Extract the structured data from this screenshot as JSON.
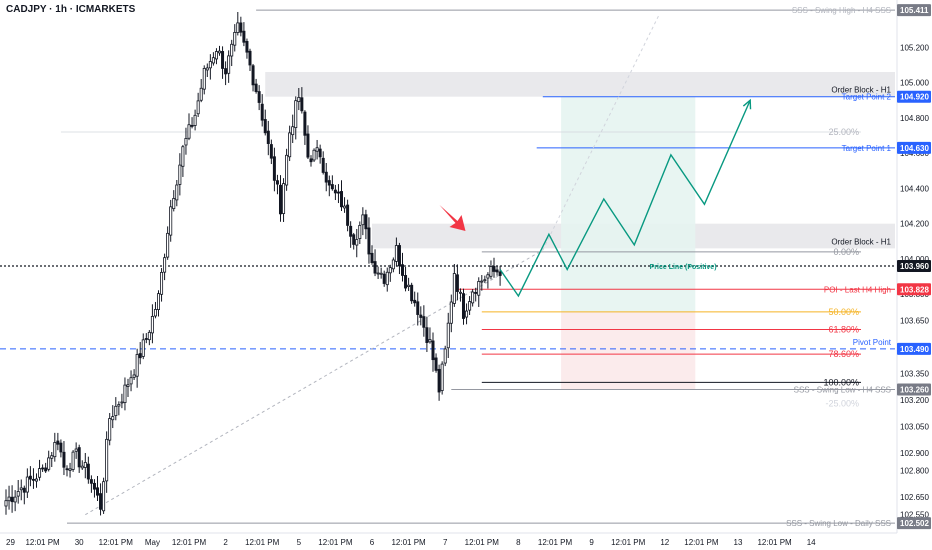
{
  "header": {
    "title": "CADJPY · 1h · ICMARKETS"
  },
  "chart_data": {
    "type": "candlestick",
    "symbol": "CADJPY",
    "timeframe": "1h",
    "broker": "ICMARKETS",
    "ylim": [
      102.48,
      105.44
    ],
    "x_ticks": [
      {
        "label": "29",
        "bar": 0
      },
      {
        "label": "12:01 PM",
        "bar": 12
      },
      {
        "label": "30",
        "bar": 24
      },
      {
        "label": "12:01 PM",
        "bar": 36
      },
      {
        "label": "May",
        "bar": 48
      },
      {
        "label": "12:01 PM",
        "bar": 60
      },
      {
        "label": "2",
        "bar": 72
      },
      {
        "label": "12:01 PM",
        "bar": 84
      },
      {
        "label": "5",
        "bar": 96
      },
      {
        "label": "12:01 PM",
        "bar": 108
      },
      {
        "label": "6",
        "bar": 120
      },
      {
        "label": "12:01 PM",
        "bar": 132
      },
      {
        "label": "7",
        "bar": 144
      },
      {
        "label": "12:01 PM",
        "bar": 156
      },
      {
        "label": "8",
        "bar": 168
      },
      {
        "label": "12:01 PM",
        "bar": 180
      },
      {
        "label": "9",
        "bar": 192
      },
      {
        "label": "12:01 PM",
        "bar": 204
      },
      {
        "label": "12",
        "bar": 216
      },
      {
        "label": "12:01 PM",
        "bar": 228
      },
      {
        "label": "13",
        "bar": 240
      },
      {
        "label": "12:01 PM",
        "bar": 252
      },
      {
        "label": "14",
        "bar": 264
      }
    ],
    "y_ticks": [
      105.2,
      105.0,
      104.8,
      104.6,
      104.4,
      104.2,
      104.0,
      103.8,
      103.65,
      103.5,
      103.35,
      103.2,
      103.05,
      102.9,
      102.8,
      102.65,
      102.55
    ],
    "y_tick_labels": [
      "105.200",
      "105.000",
      "104.800",
      "104.600",
      "104.400",
      "104.200",
      "104.000",
      "103.800",
      "103.650",
      "103.500",
      "103.350",
      "103.200",
      "103.050",
      "102.900",
      "102.800",
      "102.650",
      "102.550"
    ],
    "waypoints": [
      [
        0,
        102.63
      ],
      [
        12,
        102.8
      ],
      [
        17,
        102.98
      ],
      [
        19,
        102.82
      ],
      [
        23,
        102.88
      ],
      [
        27,
        102.78
      ],
      [
        31,
        102.6
      ],
      [
        34,
        103.1
      ],
      [
        38,
        103.22
      ],
      [
        40,
        103.3
      ],
      [
        43,
        103.42
      ],
      [
        46,
        103.55
      ],
      [
        50,
        103.78
      ],
      [
        54,
        104.3
      ],
      [
        58,
        104.62
      ],
      [
        62,
        104.82
      ],
      [
        65,
        105.05
      ],
      [
        69,
        105.2
      ],
      [
        72,
        105.07
      ],
      [
        76,
        105.3
      ],
      [
        79,
        105.16
      ],
      [
        83,
        104.9
      ],
      [
        87,
        104.55
      ],
      [
        90,
        104.3
      ],
      [
        93,
        104.72
      ],
      [
        96,
        104.92
      ],
      [
        99,
        104.58
      ],
      [
        103,
        104.6
      ],
      [
        106,
        104.4
      ],
      [
        110,
        104.32
      ],
      [
        114,
        104.12
      ],
      [
        117,
        104.22
      ],
      [
        120,
        103.98
      ],
      [
        124,
        103.9
      ],
      [
        128,
        104.05
      ],
      [
        131,
        103.88
      ],
      [
        135,
        103.72
      ],
      [
        139,
        103.52
      ],
      [
        142,
        103.26
      ],
      [
        144,
        103.47
      ],
      [
        147,
        103.93
      ],
      [
        150,
        103.7
      ],
      [
        153,
        103.83
      ],
      [
        156,
        103.88
      ],
      [
        159,
        103.92
      ],
      [
        162,
        103.94
      ]
    ],
    "series": [],
    "levels": {
      "swing_high_h4": {
        "label": "SSS - Swing High - H4 SSS",
        "value": 105.411,
        "value_label": "105.411"
      },
      "swing_low_h4": {
        "label": "SSS - Swing Low - H4 SSS",
        "value": 103.26,
        "value_label": "103.260"
      },
      "swing_low_daily": {
        "label": "SSS - Swing Low - Daily SSS",
        "value": 102.502,
        "value_label": "102.502"
      },
      "target_point_2": {
        "label": "Target Point 2",
        "value": 104.92,
        "value_label": "104.920"
      },
      "target_point_1": {
        "label": "Target Point 1",
        "value": 104.63,
        "value_label": "104.630"
      },
      "poi": {
        "label": "POI - Last H4 High",
        "value": 103.828,
        "value_label": "103.828"
      },
      "pivot_point": {
        "label": "Pivot Point",
        "value": 103.49,
        "value_label": "103.490"
      },
      "price_line": {
        "label": "Price Line (Positive)",
        "value": 103.96,
        "value_label": "103.960"
      }
    },
    "order_blocks": [
      {
        "label": "Order Block - H1",
        "top": 105.06,
        "bottom": 104.92,
        "from_bar": 85
      },
      {
        "label": "Order Block - H1",
        "top": 104.2,
        "bottom": 104.06,
        "from_bar": 120
      }
    ],
    "fibonacci": [
      {
        "label": "25.00%",
        "value": 104.72,
        "color": "#d1d4dc"
      },
      {
        "label": "0.00%",
        "value": 104.04,
        "color": "#9598a1"
      },
      {
        "label": "50.00%",
        "value": 103.7,
        "color": "#f5b324"
      },
      {
        "label": "61.80%",
        "value": 103.6,
        "color": "#f23645"
      },
      {
        "label": "78.60%",
        "value": 103.46,
        "color": "#f23645"
      },
      {
        "label": "100.00%",
        "value": 103.3,
        "color": "#131722"
      }
    ],
    "fib_tail_label": "-25.00%",
    "projection_path": [
      [
        162,
        103.94
      ],
      [
        168,
        103.79
      ],
      [
        178,
        104.14
      ],
      [
        184,
        103.94
      ],
      [
        196,
        104.34
      ],
      [
        206,
        104.08
      ],
      [
        218,
        104.59
      ],
      [
        229,
        104.31
      ],
      [
        244,
        104.9
      ]
    ],
    "colors": {
      "bull": "#131722",
      "bear": "#131722",
      "target": "#2962ff",
      "poi": "#f23645",
      "projection": "#089981",
      "fib_50": "#f5b324",
      "fib_618": "#f23645",
      "arrow": "#f23645"
    }
  }
}
